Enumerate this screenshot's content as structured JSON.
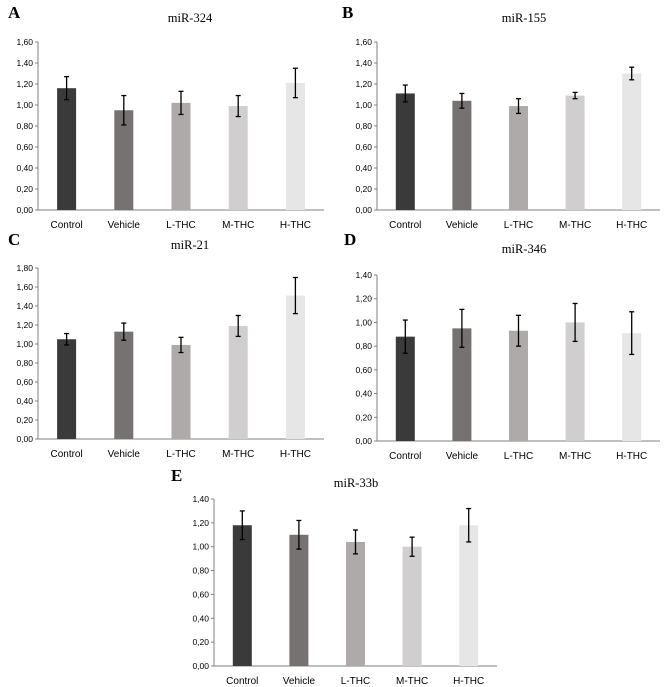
{
  "panels": [
    {
      "letter": "A",
      "letter_pos": "top-left"
    },
    {
      "letter": "B",
      "letter_pos": "top-left"
    },
    {
      "letter": "C",
      "letter_pos": "top-left"
    },
    {
      "letter": "D",
      "letter_pos": "top-left"
    },
    {
      "letter": "E",
      "letter_pos": "top-left"
    }
  ],
  "colors": [
    "#3a3a3a",
    "#767272",
    "#aeaaaa",
    "#d0cece",
    "#e7e6e6"
  ],
  "chart_data": [
    {
      "type": "bar",
      "title": "miR-324",
      "categories": [
        "Control",
        "Vehicle",
        "L-THC",
        "M-THC",
        "H-THC"
      ],
      "values": [
        1.16,
        0.95,
        1.02,
        0.99,
        1.21
      ],
      "errors": [
        0.11,
        0.14,
        0.11,
        0.1,
        0.14
      ],
      "ylim": [
        0,
        1.6
      ],
      "yticks": [
        "0,00",
        "0,20",
        "0,40",
        "0,60",
        "0,80",
        "1,00",
        "1,20",
        "1,40",
        "1,60"
      ],
      "grid": false
    },
    {
      "type": "bar",
      "title": "miR-155",
      "categories": [
        "Control",
        "Vehicle",
        "L-THC",
        "M-THC",
        "H-THC"
      ],
      "values": [
        1.11,
        1.04,
        0.99,
        1.09,
        1.3
      ],
      "errors": [
        0.08,
        0.07,
        0.07,
        0.03,
        0.06
      ],
      "ylim": [
        0,
        1.6
      ],
      "yticks": [
        "0,00",
        "0,20",
        "0,40",
        "0,60",
        "0,80",
        "1,00",
        "1,20",
        "1,40",
        "1,60"
      ],
      "grid": false
    },
    {
      "type": "bar",
      "title": "miR-21",
      "categories": [
        "Control",
        "Vehicle",
        "L-THC",
        "M-THC",
        "H-THC"
      ],
      "values": [
        1.05,
        1.13,
        0.99,
        1.19,
        1.51
      ],
      "errors": [
        0.06,
        0.09,
        0.08,
        0.11,
        0.19
      ],
      "ylim": [
        0,
        1.8
      ],
      "yticks": [
        "0,00",
        "0,20",
        "0,40",
        "0,60",
        "0,80",
        "1,00",
        "1,20",
        "1,40",
        "1,60",
        "1,80"
      ],
      "grid": false
    },
    {
      "type": "bar",
      "title": "miR-346",
      "categories": [
        "Control",
        "Vehicle",
        "L-THC",
        "M-THC",
        "H-THC"
      ],
      "values": [
        0.88,
        0.95,
        0.93,
        1.0,
        0.91
      ],
      "errors": [
        0.14,
        0.16,
        0.13,
        0.16,
        0.18
      ],
      "ylim": [
        0,
        1.4
      ],
      "yticks": [
        "0,00",
        "0,20",
        "0,40",
        "0,60",
        "0,80",
        "1,00",
        "1,20",
        "1,40"
      ],
      "grid": false
    },
    {
      "type": "bar",
      "title": "miR-33b",
      "categories": [
        "Control",
        "Vehicle",
        "L-THC",
        "M-THC",
        "H-THC"
      ],
      "values": [
        1.18,
        1.1,
        1.04,
        1.0,
        1.18
      ],
      "errors": [
        0.12,
        0.12,
        0.1,
        0.08,
        0.14
      ],
      "ylim": [
        0,
        1.4
      ],
      "yticks": [
        "0,00",
        "0,20",
        "0,40",
        "0,60",
        "0,80",
        "1,00",
        "1,20",
        "1,40"
      ],
      "grid": false
    }
  ]
}
